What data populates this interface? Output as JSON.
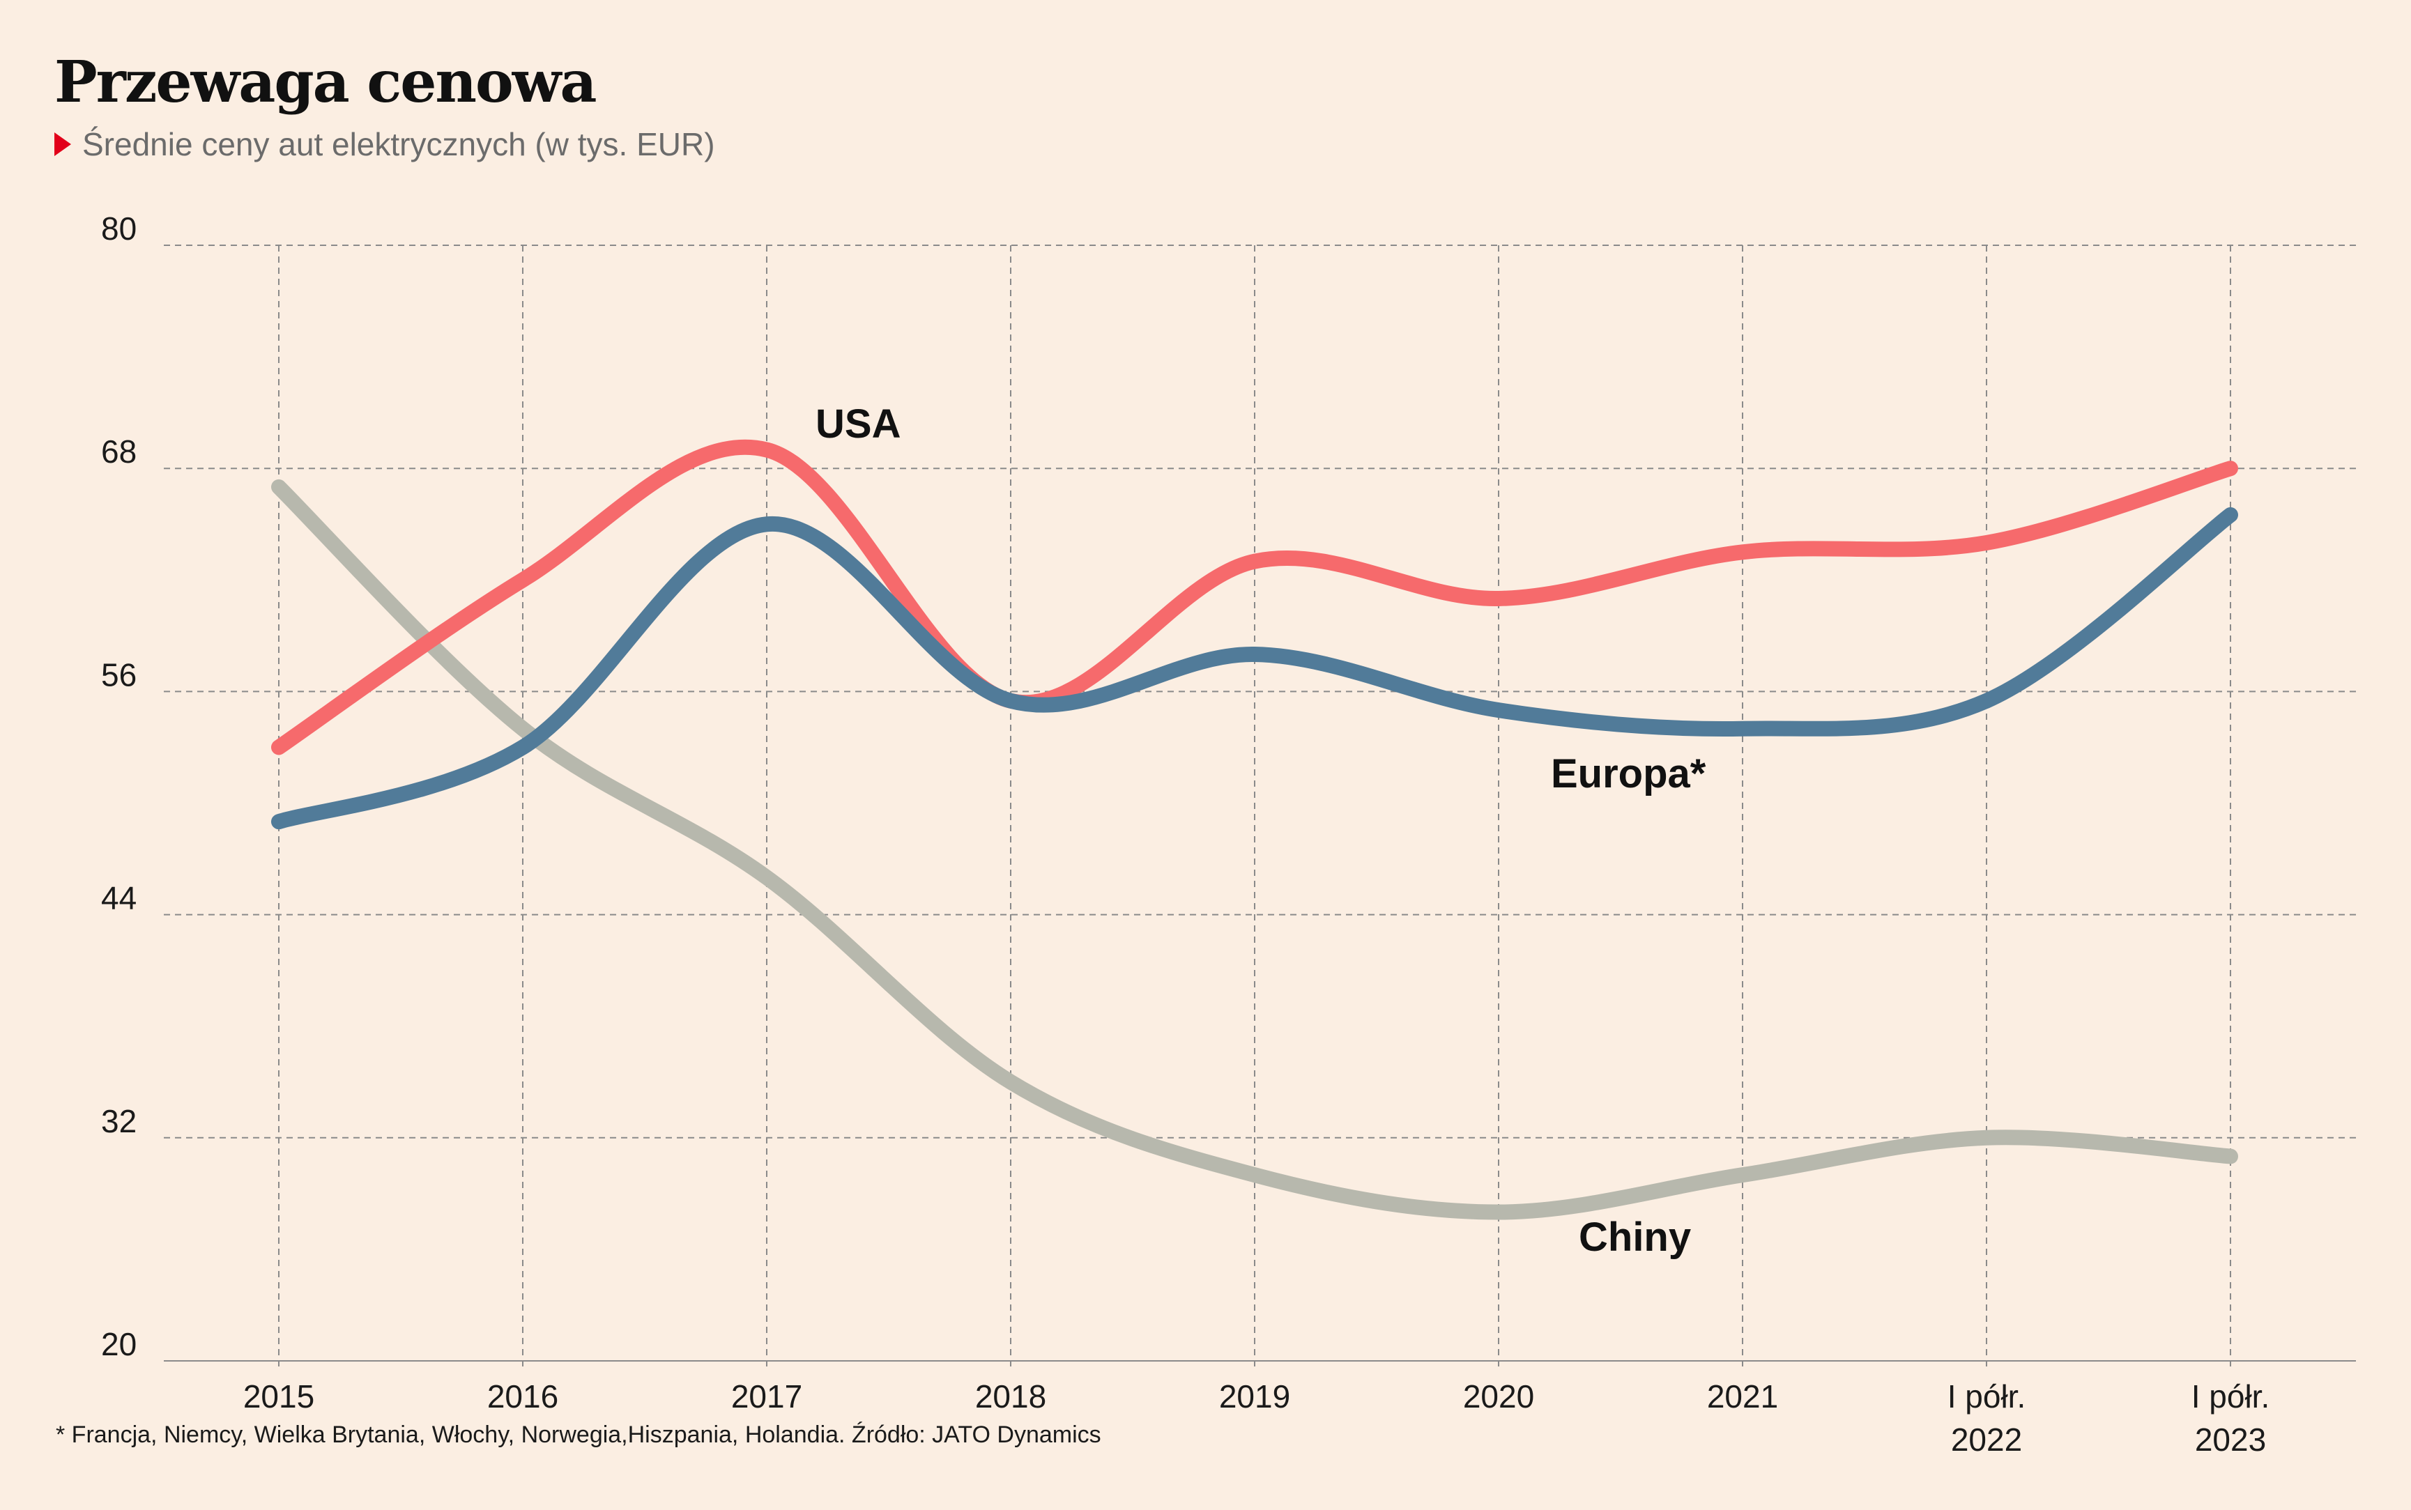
{
  "title": "Przewaga cenowa",
  "subtitle": "Średnie ceny aut elektrycznych (w tys. EUR)",
  "footnote": "* Francja, Niemcy, Wielka Brytania, Włochy, Norwegia,Hiszpania, Holandia. Źródło: JATO Dynamics",
  "colors": {
    "background": "#fbeee2",
    "usa": "#f66a6c",
    "europa": "#517b99",
    "chiny": "#b7b8ad",
    "grid": "#8a8a8a",
    "accent": "#e2001a"
  },
  "chart_data": {
    "type": "line",
    "categories": [
      "2015",
      "2016",
      "2017",
      "2018",
      "2019",
      "2020",
      "2021",
      "I półr.\n2022",
      "I półr.\n2023"
    ],
    "ylim": [
      20,
      80
    ],
    "yticks": [
      20,
      32,
      44,
      56,
      68,
      80
    ],
    "grid": true,
    "series": [
      {
        "name": "USA",
        "color": "#f66a6c",
        "values": [
          53,
          62,
          69,
          55.5,
          63,
          61,
          63.5,
          64,
          68
        ]
      },
      {
        "name": "Europa*",
        "color": "#517b99",
        "values": [
          49,
          53,
          65,
          55.5,
          58,
          55,
          54,
          55.5,
          65.5
        ]
      },
      {
        "name": "Chiny",
        "color": "#b7b8ad",
        "values": [
          67,
          54,
          46,
          35,
          30,
          28,
          30,
          32,
          31
        ]
      }
    ]
  }
}
